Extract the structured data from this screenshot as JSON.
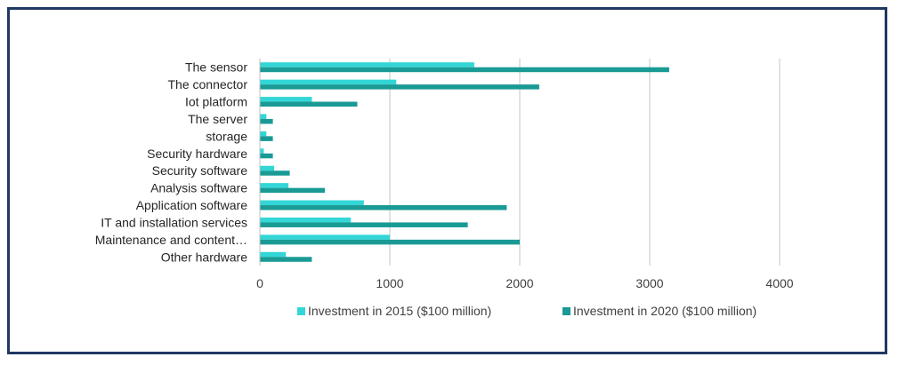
{
  "chart_data": {
    "type": "bar",
    "orientation": "horizontal",
    "categories": [
      "The sensor",
      "The connector",
      "Iot platform",
      "The server",
      "storage",
      "Security hardware",
      "Security software",
      "Analysis software",
      "Application software",
      "IT and installation services",
      "Maintenance and content…",
      "Other hardware"
    ],
    "series": [
      {
        "name": "Investment in 2015 ($100 million)",
        "color": "#33d6d6",
        "values": [
          1650,
          1050,
          400,
          50,
          50,
          30,
          110,
          220,
          800,
          700,
          1000,
          200
        ]
      },
      {
        "name": "Investment in 2020 ($100 million)",
        "color": "#1a9a95",
        "values": [
          3150,
          2150,
          750,
          100,
          100,
          100,
          230,
          500,
          1900,
          1600,
          2000,
          400
        ]
      }
    ],
    "xlim": [
      0,
      4000
    ],
    "xticks": [
      "0",
      "1000",
      "2000",
      "3000",
      "4000"
    ],
    "grid": "vertical",
    "legend_position": "bottom",
    "title": "",
    "xlabel": "",
    "ylabel": ""
  }
}
